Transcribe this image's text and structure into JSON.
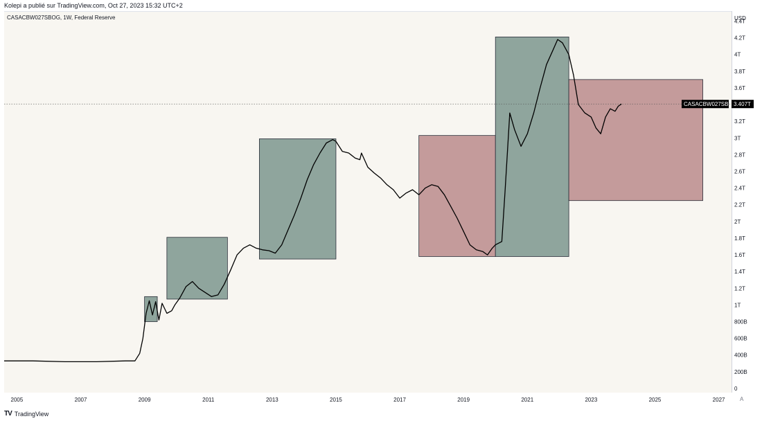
{
  "header": {
    "caption": "Kolepi a publié sur TradingView.com, Oct 27, 2023 15:32 UTC+2",
    "symbol_line": "CASACBW027SBOG, 1W, Federal Reserve",
    "currency": "USD"
  },
  "footer": {
    "brand": "TradingView",
    "brand_icon": "tradingview-logo-icon",
    "auto_scale_label": "A"
  },
  "colors": {
    "green_box": "#8fa59d",
    "red_box": "#c49b9b",
    "line": "#000000",
    "tag_bg": "#000000"
  },
  "chart_data": {
    "type": "line",
    "title": "",
    "xlabel": "",
    "ylabel": "",
    "unit": "USD",
    "series_name": "CASACBW027SBOG",
    "last_value_label": "3.407T",
    "last_value": 3.407,
    "x_ticks": [
      "2005",
      "2007",
      "2009",
      "2011",
      "2013",
      "2015",
      "2017",
      "2019",
      "2021",
      "2023",
      "2025",
      "2027"
    ],
    "x_range": [
      2004.6,
      2027.4
    ],
    "y_ticks": [
      {
        "v": 0,
        "label": "0"
      },
      {
        "v": 0.2,
        "label": "200B"
      },
      {
        "v": 0.4,
        "label": "400B"
      },
      {
        "v": 0.6,
        "label": "600B"
      },
      {
        "v": 0.8,
        "label": "800B"
      },
      {
        "v": 1.0,
        "label": "1T"
      },
      {
        "v": 1.2,
        "label": "1.2T"
      },
      {
        "v": 1.4,
        "label": "1.4T"
      },
      {
        "v": 1.6,
        "label": "1.6T"
      },
      {
        "v": 1.8,
        "label": "1.8T"
      },
      {
        "v": 2.0,
        "label": "2T"
      },
      {
        "v": 2.2,
        "label": "2.2T"
      },
      {
        "v": 2.4,
        "label": "2.4T"
      },
      {
        "v": 2.6,
        "label": "2.6T"
      },
      {
        "v": 2.8,
        "label": "2.8T"
      },
      {
        "v": 3.0,
        "label": "3T"
      },
      {
        "v": 3.2,
        "label": "3.2T"
      },
      {
        "v": 3.4,
        "label": "3.4T"
      },
      {
        "v": 3.6,
        "label": "3.6T"
      },
      {
        "v": 3.8,
        "label": "3.8T"
      },
      {
        "v": 4.0,
        "label": "4T"
      },
      {
        "v": 4.2,
        "label": "4.2T"
      },
      {
        "v": 4.4,
        "label": "4.4T"
      }
    ],
    "y_range_trillions": [
      -0.05,
      4.52
    ],
    "points": [
      [
        2004.6,
        0.33
      ],
      [
        2005.5,
        0.33
      ],
      [
        2006.5,
        0.32
      ],
      [
        2007.5,
        0.32
      ],
      [
        2008.4,
        0.33
      ],
      [
        2008.7,
        0.33
      ],
      [
        2008.85,
        0.42
      ],
      [
        2008.95,
        0.6
      ],
      [
        2009.05,
        0.9
      ],
      [
        2009.15,
        1.05
      ],
      [
        2009.25,
        0.88
      ],
      [
        2009.35,
        1.04
      ],
      [
        2009.45,
        0.82
      ],
      [
        2009.55,
        1.02
      ],
      [
        2009.7,
        0.9
      ],
      [
        2009.85,
        0.93
      ],
      [
        2009.95,
        1.0
      ],
      [
        2010.1,
        1.08
      ],
      [
        2010.3,
        1.22
      ],
      [
        2010.5,
        1.28
      ],
      [
        2010.7,
        1.2
      ],
      [
        2010.9,
        1.15
      ],
      [
        2011.1,
        1.1
      ],
      [
        2011.3,
        1.12
      ],
      [
        2011.5,
        1.25
      ],
      [
        2011.7,
        1.42
      ],
      [
        2011.9,
        1.6
      ],
      [
        2012.1,
        1.68
      ],
      [
        2012.3,
        1.72
      ],
      [
        2012.5,
        1.68
      ],
      [
        2012.7,
        1.66
      ],
      [
        2012.9,
        1.65
      ],
      [
        2013.1,
        1.62
      ],
      [
        2013.3,
        1.72
      ],
      [
        2013.5,
        1.9
      ],
      [
        2013.7,
        2.08
      ],
      [
        2013.9,
        2.28
      ],
      [
        2014.1,
        2.5
      ],
      [
        2014.3,
        2.68
      ],
      [
        2014.5,
        2.82
      ],
      [
        2014.7,
        2.94
      ],
      [
        2014.9,
        2.98
      ],
      [
        2015.0,
        2.96
      ],
      [
        2015.2,
        2.84
      ],
      [
        2015.4,
        2.82
      ],
      [
        2015.6,
        2.76
      ],
      [
        2015.75,
        2.74
      ],
      [
        2015.8,
        2.82
      ],
      [
        2016.0,
        2.65
      ],
      [
        2016.2,
        2.58
      ],
      [
        2016.4,
        2.52
      ],
      [
        2016.6,
        2.44
      ],
      [
        2016.8,
        2.38
      ],
      [
        2017.0,
        2.28
      ],
      [
        2017.2,
        2.34
      ],
      [
        2017.4,
        2.38
      ],
      [
        2017.6,
        2.32
      ],
      [
        2017.8,
        2.4
      ],
      [
        2018.0,
        2.44
      ],
      [
        2018.2,
        2.42
      ],
      [
        2018.4,
        2.32
      ],
      [
        2018.6,
        2.18
      ],
      [
        2018.8,
        2.04
      ],
      [
        2019.0,
        1.88
      ],
      [
        2019.2,
        1.72
      ],
      [
        2019.4,
        1.66
      ],
      [
        2019.6,
        1.64
      ],
      [
        2019.75,
        1.6
      ],
      [
        2019.9,
        1.68
      ],
      [
        2020.0,
        1.72
      ],
      [
        2020.1,
        1.74
      ],
      [
        2020.2,
        1.76
      ],
      [
        2020.3,
        2.35
      ],
      [
        2020.45,
        3.3
      ],
      [
        2020.6,
        3.1
      ],
      [
        2020.8,
        2.9
      ],
      [
        2021.0,
        3.05
      ],
      [
        2021.2,
        3.3
      ],
      [
        2021.4,
        3.6
      ],
      [
        2021.6,
        3.88
      ],
      [
        2021.8,
        4.05
      ],
      [
        2021.95,
        4.18
      ],
      [
        2022.1,
        4.14
      ],
      [
        2022.3,
        4.0
      ],
      [
        2022.45,
        3.75
      ],
      [
        2022.6,
        3.4
      ],
      [
        2022.8,
        3.3
      ],
      [
        2023.0,
        3.25
      ],
      [
        2023.15,
        3.12
      ],
      [
        2023.3,
        3.05
      ],
      [
        2023.45,
        3.25
      ],
      [
        2023.6,
        3.35
      ],
      [
        2023.75,
        3.32
      ],
      [
        2023.85,
        3.38
      ],
      [
        2023.95,
        3.407
      ]
    ],
    "zones": [
      {
        "type": "green",
        "x0": 2009.0,
        "x1": 2009.4,
        "y0": 0.8,
        "y1": 1.1
      },
      {
        "type": "green",
        "x0": 2009.7,
        "x1": 2011.6,
        "y0": 1.07,
        "y1": 1.81
      },
      {
        "type": "green",
        "x0": 2012.6,
        "x1": 2015.0,
        "y0": 1.55,
        "y1": 2.99
      },
      {
        "type": "red",
        "x0": 2017.6,
        "x1": 2020.0,
        "y0": 1.58,
        "y1": 3.03
      },
      {
        "type": "green",
        "x0": 2020.0,
        "x1": 2022.3,
        "y0": 1.58,
        "y1": 4.21
      },
      {
        "type": "red",
        "x0": 2022.3,
        "x1": 2026.5,
        "y0": 2.25,
        "y1": 3.7
      }
    ]
  }
}
